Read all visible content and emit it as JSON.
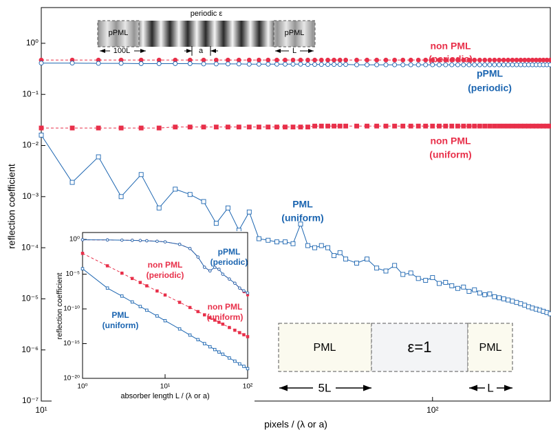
{
  "chart_data": [
    {
      "type": "line",
      "ylabel": "reflection coefficient",
      "xlabel": "pixels / (λ or a)",
      "log_x": true,
      "log_y": true,
      "xlim": [
        10,
        200
      ],
      "ylim": [
        1e-07,
        5
      ],
      "xticks": [
        {
          "value": 10,
          "label": "10¹"
        },
        {
          "value": 100,
          "label": "10²"
        }
      ],
      "yticks": [
        {
          "value": 1,
          "label": "10⁰"
        },
        {
          "value": 0.1,
          "label": "10⁻¹"
        },
        {
          "value": 0.01,
          "label": "10⁻²"
        },
        {
          "value": 0.001,
          "label": "10⁻³"
        },
        {
          "value": 0.0001,
          "label": "10⁻⁴"
        },
        {
          "value": 1e-05,
          "label": "10⁻⁵"
        },
        {
          "value": 1e-06,
          "label": "10⁻⁶"
        },
        {
          "value": 1e-07,
          "label": "10⁻⁷"
        }
      ],
      "x": [
        10,
        12,
        14,
        16,
        18,
        20,
        22,
        24,
        26,
        28,
        30,
        32,
        34,
        36,
        38,
        40,
        42,
        44,
        46,
        48,
        50,
        52,
        54,
        56,
        58,
        60,
        64,
        68,
        72,
        76,
        80,
        84,
        88,
        92,
        96,
        100,
        104,
        108,
        112,
        116,
        120,
        124,
        128,
        132,
        136,
        140,
        144,
        148,
        152,
        156,
        160,
        164,
        168,
        172,
        176,
        180,
        184,
        188,
        192,
        196,
        200
      ],
      "series": [
        {
          "label": [
            "non PML",
            "(periodic)"
          ],
          "color": "#e8304a",
          "marker": "circle",
          "filled": true,
          "dashed": true,
          "values": [
            0.47,
            0.47,
            0.47,
            0.47,
            0.47,
            0.47,
            0.47,
            0.47,
            0.47,
            0.47,
            0.47,
            0.47,
            0.47,
            0.47,
            0.47,
            0.47,
            0.47,
            0.47,
            0.47,
            0.47,
            0.47,
            0.47,
            0.47,
            0.47,
            0.47,
            0.47,
            0.47,
            0.47,
            0.47,
            0.47,
            0.47,
            0.47,
            0.47,
            0.47,
            0.47,
            0.47,
            0.47,
            0.47,
            0.47,
            0.47,
            0.47,
            0.47,
            0.47,
            0.47,
            0.47,
            0.47,
            0.47,
            0.47,
            0.47,
            0.47,
            0.47,
            0.47,
            0.47,
            0.47,
            0.47,
            0.47,
            0.47,
            0.47,
            0.47,
            0.47,
            0.47
          ]
        },
        {
          "label": [
            "pPML",
            "(periodic)"
          ],
          "color": "#1a64b0",
          "marker": "circle",
          "filled": false,
          "dashed": false,
          "values": [
            0.41,
            0.41,
            0.405,
            0.405,
            0.4,
            0.4,
            0.4,
            0.4,
            0.395,
            0.395,
            0.395,
            0.395,
            0.39,
            0.39,
            0.39,
            0.39,
            0.39,
            0.39,
            0.39,
            0.385,
            0.385,
            0.385,
            0.385,
            0.385,
            0.385,
            0.385,
            0.38,
            0.38,
            0.38,
            0.38,
            0.38,
            0.38,
            0.38,
            0.38,
            0.38,
            0.38,
            0.38,
            0.38,
            0.38,
            0.38,
            0.38,
            0.38,
            0.38,
            0.38,
            0.38,
            0.38,
            0.38,
            0.38,
            0.38,
            0.38,
            0.38,
            0.38,
            0.38,
            0.38,
            0.38,
            0.38,
            0.38,
            0.38,
            0.38,
            0.38,
            0.38
          ]
        },
        {
          "label": [
            "non PML",
            "(uniform)"
          ],
          "color": "#e8304a",
          "marker": "square",
          "filled": true,
          "dashed": true,
          "values": [
            0.022,
            0.022,
            0.022,
            0.022,
            0.022,
            0.022,
            0.023,
            0.023,
            0.023,
            0.023,
            0.023,
            0.023,
            0.023,
            0.023,
            0.023,
            0.023,
            0.023,
            0.023,
            0.023,
            0.023,
            0.024,
            0.024,
            0.024,
            0.024,
            0.024,
            0.024,
            0.024,
            0.024,
            0.024,
            0.024,
            0.024,
            0.024,
            0.024,
            0.024,
            0.024,
            0.024,
            0.024,
            0.024,
            0.024,
            0.024,
            0.024,
            0.024,
            0.024,
            0.024,
            0.024,
            0.024,
            0.024,
            0.024,
            0.024,
            0.024,
            0.024,
            0.024,
            0.024,
            0.024,
            0.024,
            0.024,
            0.024,
            0.024,
            0.024,
            0.024,
            0.024
          ]
        },
        {
          "label": [
            "PML",
            "(uniform)"
          ],
          "color": "#1a64b0",
          "marker": "square",
          "filled": false,
          "dashed": false,
          "values": [
            0.016,
            0.0019,
            0.006,
            0.001,
            0.0027,
            0.0006,
            0.0014,
            0.0011,
            0.0008,
            0.0003,
            0.0006,
            0.00022,
            0.0005,
            0.00015,
            0.00014,
            0.00013,
            0.00013,
            0.00012,
            0.00029,
            0.00011,
            0.0001,
            0.00011,
            0.0001,
            7e-05,
            8e-05,
            6e-05,
            5e-05,
            6e-05,
            4e-05,
            3.5e-05,
            4.5e-05,
            3e-05,
            3.2e-05,
            2.5e-05,
            2.3e-05,
            2.6e-05,
            2e-05,
            2.1e-05,
            1.8e-05,
            1.6e-05,
            1.7e-05,
            1.4e-05,
            1.5e-05,
            1.3e-05,
            1.2e-05,
            1.25e-05,
            1.1e-05,
            1.05e-05,
            1e-05,
            9.5e-06,
            9e-06,
            8.5e-06,
            8e-06,
            7.5e-06,
            7e-06,
            6.6e-06,
            6.3e-06,
            6e-06,
            5.7e-06,
            5.4e-06,
            5.1e-06
          ]
        }
      ],
      "schematic": {
        "top": {
          "title": "periodic ε",
          "left": "pPML",
          "right": "pPML",
          "left_length": "100L",
          "period": "a",
          "right_length": "L"
        },
        "bottom": {
          "left": "PML",
          "middle": "ε=1",
          "right": "PML",
          "left_length": "5L",
          "right_length": "L"
        }
      }
    },
    {
      "type": "line",
      "ylabel": "reflection coefficient",
      "xlabel": "absorber length L / (λ or a)",
      "log_x": true,
      "log_y": true,
      "xlim": [
        1,
        100
      ],
      "ylim": [
        1e-20,
        10
      ],
      "xticks": [
        {
          "value": 1,
          "label": "10⁰"
        },
        {
          "value": 10,
          "label": "10¹"
        },
        {
          "value": 100,
          "label": "10²"
        }
      ],
      "yticks": [
        {
          "value": 1,
          "label": "10⁰"
        },
        {
          "value": 1e-05,
          "label": "10⁻⁵"
        },
        {
          "value": 1e-10,
          "label": "10⁻¹⁰"
        },
        {
          "value": 1e-15,
          "label": "10⁻¹⁵"
        },
        {
          "value": 1e-20,
          "label": "10⁻²⁰"
        }
      ],
      "x": [
        1,
        2,
        3,
        4,
        5,
        6,
        8,
        10,
        15,
        20,
        25,
        30,
        35,
        40,
        45,
        50,
        60,
        70,
        80,
        90,
        100
      ],
      "series": [
        {
          "label": [
            "non PML",
            "(periodic)"
          ],
          "color": "#e8304a",
          "marker": "circle",
          "filled": true,
          "dashed": true,
          "values": [
            0.9,
            0.85,
            0.8,
            0.75,
            0.7,
            0.65,
            0.55,
            0.45,
            0.2,
            0.05,
            0.003,
            0.0001,
            3e-05,
            0.0001,
            5e-05,
            1e-05,
            2e-06,
            5e-07,
            1e-07,
            3e-08,
            1e-08
          ]
        },
        {
          "label": [
            "pPML",
            "(periodic)"
          ],
          "color": "#1a64b0",
          "marker": "circle",
          "filled": false,
          "dashed": false,
          "values": [
            0.9,
            0.85,
            0.8,
            0.75,
            0.7,
            0.65,
            0.55,
            0.45,
            0.2,
            0.05,
            0.003,
            0.0001,
            3e-05,
            0.0001,
            5e-05,
            1e-05,
            2e-06,
            5e-07,
            1e-07,
            4e-08,
            2e-08
          ]
        },
        {
          "label": [
            "non PML",
            "(uniform)"
          ],
          "color": "#e8304a",
          "marker": "square",
          "filled": true,
          "dashed": true,
          "values": [
            0.01,
            0.00016,
            1.4e-05,
            2.4e-06,
            6.4e-07,
            2.1e-07,
            3.8e-08,
            1e-08,
            8.8e-10,
            1.6e-10,
            4.1e-11,
            1.4e-11,
            5.4e-12,
            2.4e-12,
            1.2e-12,
            6.4e-13,
            2.1e-13,
            8.5e-14,
            3.8e-14,
            1.9e-14,
            1e-14
          ]
        },
        {
          "label": [
            "PML",
            "(uniform)"
          ],
          "color": "#1a64b0",
          "marker": "square",
          "filled": false,
          "dashed": false,
          "values": [
            6e-05,
            1e-07,
            7e-09,
            1e-09,
            2.2e-10,
            6.5e-11,
            9.5e-12,
            2e-12,
            1.3e-13,
            1.7e-14,
            3.7e-15,
            1e-15,
            3.5e-16,
            1.4e-16,
            6.2e-17,
            3e-17,
            8.5e-18,
            3e-18,
            1.2e-18,
            5.3e-19,
            2.5e-19
          ]
        }
      ]
    }
  ]
}
